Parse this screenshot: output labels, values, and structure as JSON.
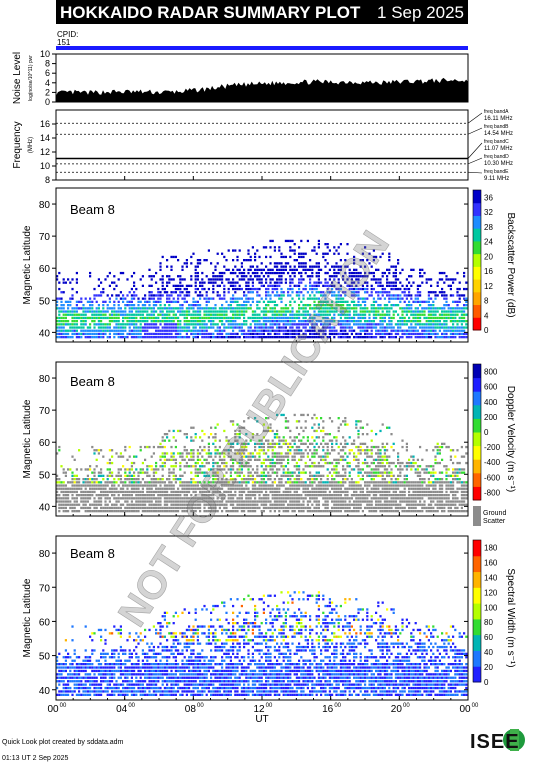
{
  "header": {
    "title": "HOKKAIDO RADAR SUMMARY PLOT",
    "date": "1 Sep 2025",
    "cpid_label": "CPID:",
    "cpid_value": "151"
  },
  "colors": {
    "header_bg": "#000000",
    "header_text": "#ffffff",
    "cpid_bar": "#1a1aff",
    "noise_fill": "#000000",
    "ground_scatter": "#8c8c8c"
  },
  "footer": {
    "created_by": "Quick Look plot created by sddata.adm",
    "timestamp": "01:13 UT  2 Sep 2025",
    "logo_text": "ISEE"
  },
  "watermark": "NOT FOR PUBLICATION",
  "x_axis": {
    "title": "UT",
    "ticks": [
      {
        "hour": 0,
        "label": "00",
        "sup": "00"
      },
      {
        "hour": 4,
        "label": "04",
        "sup": "00"
      },
      {
        "hour": 8,
        "label": "08",
        "sup": "00"
      },
      {
        "hour": 12,
        "label": "12",
        "sup": "00"
      },
      {
        "hour": 16,
        "label": "16",
        "sup": "00"
      },
      {
        "hour": 20,
        "label": "20",
        "sup": "00"
      },
      {
        "hour": 24,
        "label": "00",
        "sup": "00"
      }
    ]
  },
  "chart_data": [
    {
      "type": "area",
      "id": "noise",
      "ylabel": "Noise Level",
      "ylabel_sub": "log(noise/10^11) pwr",
      "ylim": [
        0,
        10
      ],
      "yticks": [
        0,
        2,
        4,
        6,
        8,
        10
      ],
      "x": [
        0,
        1,
        2,
        3,
        4,
        5,
        6,
        7,
        8,
        9,
        10,
        11,
        12,
        13,
        14,
        15,
        16,
        17,
        18,
        19,
        20,
        21,
        22,
        23,
        24
      ],
      "values": [
        1.6,
        1.8,
        1.7,
        1.9,
        1.9,
        1.9,
        1.8,
        1.9,
        2.2,
        2.6,
        3.1,
        3.4,
        3.6,
        3.8,
        3.9,
        4.0,
        3.9,
        4.0,
        3.9,
        3.8,
        4.0,
        4.1,
        4.2,
        4.3,
        4.3
      ]
    },
    {
      "type": "line",
      "id": "frequency",
      "ylabel": "Frequency",
      "ylabel_sub": "(MHz)",
      "ylim": [
        8,
        18
      ],
      "yticks": [
        8,
        10,
        12,
        14,
        16
      ],
      "series": [
        {
          "values_const": 11.07
        }
      ],
      "freq_bands": [
        {
          "label": "freq bandA",
          "value": "16.11 MHz",
          "mhz": 16.11
        },
        {
          "label": "freq bandB",
          "value": "14.54 MHz",
          "mhz": 14.54
        },
        {
          "label": "freq bandC",
          "value": "11.07 MHz",
          "mhz": 11.07
        },
        {
          "label": "freq bandD",
          "value": "10.30 MHz",
          "mhz": 10.3
        },
        {
          "label": "freq bandE",
          "value": "9.11 MHz",
          "mhz": 9.11
        }
      ]
    },
    {
      "type": "heatmap",
      "id": "power",
      "beam": "Beam  8",
      "ylabel": "Magnetic Latitude",
      "ylim": [
        37,
        85
      ],
      "yticks": [
        40,
        50,
        60,
        70,
        80
      ],
      "colorbar_label": "Backscatter Power (dB)",
      "colorbar_ticks": [
        "0",
        "4",
        "8",
        "12",
        "16",
        "20",
        "24",
        "28",
        "32",
        "36"
      ],
      "colorbar_range": [
        0,
        38
      ],
      "colorbar_colors": [
        "#ff0000",
        "#ff5a00",
        "#ffa500",
        "#ffd200",
        "#ffff00",
        "#b4ff00",
        "#32dc32",
        "#00c8a0",
        "#1e8cff",
        "#3232ff",
        "#0000c8"
      ]
    },
    {
      "type": "heatmap",
      "id": "velocity",
      "beam": "Beam  8",
      "ylabel": "Magnetic Latitude",
      "ylim": [
        37,
        85
      ],
      "yticks": [
        40,
        50,
        60,
        70,
        80
      ],
      "colorbar_label": "Doppler Velocity (m s⁻¹)",
      "colorbar_ticks": [
        "800",
        "600",
        "400",
        "200",
        "0",
        "-200",
        "-400",
        "-600",
        "-800"
      ],
      "colorbar_range": [
        -900,
        900
      ],
      "colorbar_colors": [
        "#ff0000",
        "#ff6400",
        "#ffb400",
        "#ffff00",
        "#b4ff00",
        "#32dc32",
        "#00b4b4",
        "#1e78ff",
        "#1e1eff",
        "#0000b4"
      ],
      "ground_scatter_label": [
        "Ground",
        "Scatter"
      ]
    },
    {
      "type": "heatmap",
      "id": "width",
      "beam": "Beam  8",
      "ylabel": "Magnetic Latitude",
      "ylim": [
        37,
        85
      ],
      "yticks": [
        40,
        50,
        60,
        70,
        80
      ],
      "colorbar_label": "Spectral Width (m s⁻¹)",
      "colorbar_ticks": [
        "0",
        "20",
        "40",
        "60",
        "80",
        "100",
        "120",
        "140",
        "160",
        "180"
      ],
      "colorbar_range": [
        0,
        190
      ],
      "colorbar_colors": [
        "#2020ff",
        "#1e78ff",
        "#00b4b4",
        "#32dc32",
        "#b4ff00",
        "#ffff00",
        "#ffb400",
        "#ff6400",
        "#ff0000"
      ]
    }
  ]
}
